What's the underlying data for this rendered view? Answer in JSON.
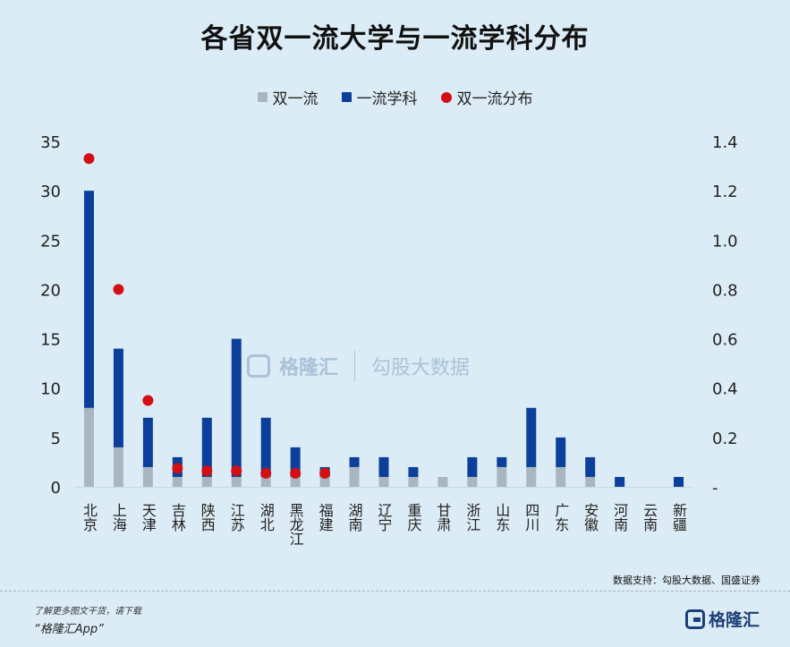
{
  "title": "各省双一流大学与一流学科分布",
  "legend": {
    "a": "双一流",
    "b": "一流学科",
    "c": "双一流分布"
  },
  "colors": {
    "shuangyiliu": "#a9b6bf",
    "yiliu_xueke": "#0b3f9a",
    "distribution": "#d40f14"
  },
  "source": "数据支持：勾股大数据、国盛证券",
  "watermark": {
    "brand": "格隆汇",
    "brand2": "勾股大数据"
  },
  "footer": {
    "note": "了解更多图文干货，请下载",
    "app": "“格隆汇App”",
    "logo": "格隆汇"
  },
  "chart_data": {
    "type": "bar",
    "stacked": true,
    "categories": [
      "北京",
      "上海",
      "天津",
      "吉林",
      "陕西",
      "江苏",
      "湖北",
      "黑龙江",
      "福建",
      "湖南",
      "辽宁",
      "重庆",
      "甘肃",
      "浙江",
      "山东",
      "四川",
      "广东",
      "安徽",
      "河南",
      "云南",
      "新疆"
    ],
    "series": [
      {
        "name": "双一流",
        "axis": "left",
        "values": [
          8,
          4,
          2,
          1,
          1,
          1,
          1,
          1,
          1,
          2,
          1,
          1,
          1,
          1,
          2,
          2,
          2,
          1,
          0,
          0,
          0
        ]
      },
      {
        "name": "一流学科",
        "axis": "left",
        "values": [
          22,
          10,
          5,
          2,
          6,
          14,
          6,
          3,
          1,
          1,
          2,
          1,
          0,
          2,
          1,
          6,
          3,
          2,
          1,
          0,
          1
        ]
      },
      {
        "name": "双一流分布",
        "axis": "right",
        "type": "scatter",
        "values": [
          1.33,
          0.8,
          0.35,
          0.075,
          0.065,
          0.065,
          0.055,
          0.055,
          0.055,
          null,
          null,
          null,
          null,
          null,
          null,
          null,
          null,
          null,
          null,
          null,
          null
        ]
      }
    ],
    "yticks_left": [
      "0",
      "5",
      "10",
      "15",
      "20",
      "25",
      "30",
      "35"
    ],
    "yticks_right": [
      "-",
      "0.2",
      "0.4",
      "0.6",
      "0.8",
      "1.0",
      "1.2",
      "1.4"
    ],
    "ylim_left": [
      0,
      35
    ],
    "ylim_right": [
      0,
      1.4
    ],
    "legend_position": "top-center"
  }
}
